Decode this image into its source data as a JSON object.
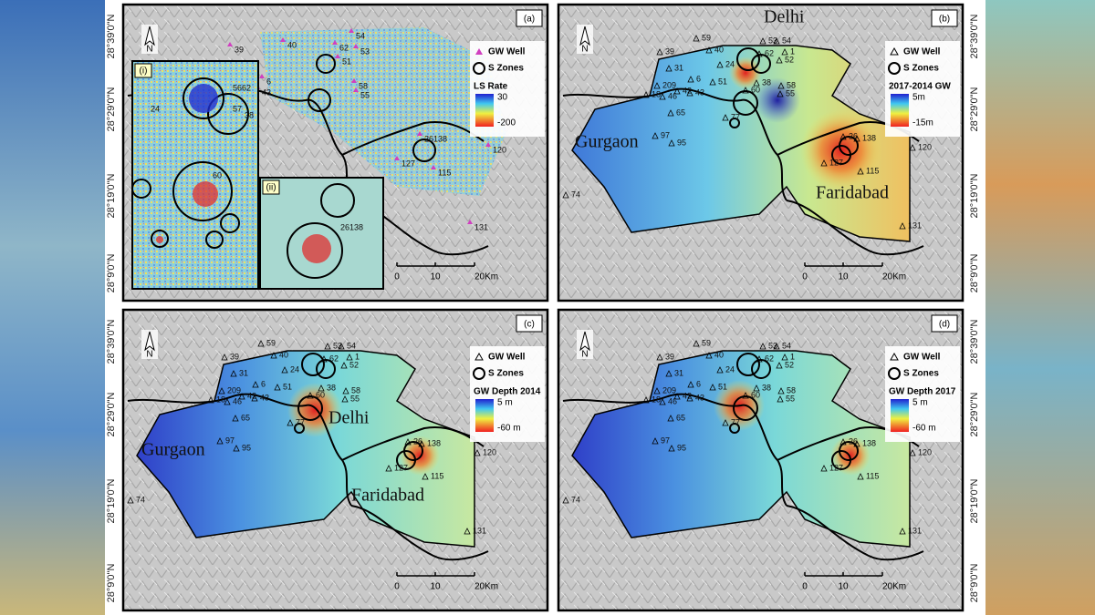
{
  "north": "N",
  "latitude_labels": [
    "28°39'0\"N",
    "28°29'0\"N",
    "28°19'0\"N",
    "28°9'0\"N"
  ],
  "panels": [
    {
      "label": "(a)",
      "legend": {
        "well": "GW Well",
        "zones": "S Zones",
        "ramp_title": "LS Rate",
        "ramp_max": "30",
        "ramp_min": "-200"
      },
      "scale": [
        "0",
        "10",
        "20Km"
      ],
      "places": [],
      "insets": [
        "(i)",
        "(ii)"
      ],
      "wells": [
        "39",
        "40",
        "54",
        "53",
        "62",
        "51",
        "58",
        "55",
        "6",
        "43",
        "120",
        "115",
        "131",
        "127",
        "26138"
      ],
      "inset_wells": [
        "5662",
        "57",
        "38",
        "24",
        "60",
        "26138"
      ]
    },
    {
      "label": "(b)",
      "legend": {
        "well": "GW Well",
        "zones": "S Zones",
        "ramp_title": "2017-2014 GW",
        "ramp_max": "5m",
        "ramp_min": "-15m"
      },
      "scale": [
        "0",
        "10",
        "20Km"
      ],
      "places": [
        "Delhi",
        "Gurgaon",
        "Faridabad"
      ],
      "wells": [
        "59",
        "40",
        "53",
        "54",
        "1",
        "62",
        "52",
        "39",
        "31",
        "24",
        "6",
        "51",
        "209",
        "42",
        "43",
        "18",
        "46",
        "60",
        "38",
        "58",
        "55",
        "65",
        "77",
        "97",
        "95",
        "26",
        "138",
        "127",
        "115",
        "120",
        "131",
        "74"
      ]
    },
    {
      "label": "(c)",
      "legend": {
        "well": "GW Well",
        "zones": "S Zones",
        "ramp_title": "GW Depth 2014",
        "ramp_max": "5 m",
        "ramp_min": "-60 m"
      },
      "scale": [
        "0",
        "10",
        "20Km"
      ],
      "places": [
        "Delhi",
        "Gurgaon",
        "Faridabad"
      ],
      "wells": [
        "59",
        "40",
        "53",
        "54",
        "1",
        "62",
        "52",
        "39",
        "31",
        "24",
        "6",
        "51",
        "209",
        "42",
        "43",
        "18",
        "46",
        "60",
        "38",
        "58",
        "55",
        "65",
        "77",
        "97",
        "95",
        "26",
        "138",
        "127",
        "115",
        "120",
        "131",
        "74"
      ]
    },
    {
      "label": "(d)",
      "legend": {
        "well": "GW Well",
        "zones": "S Zones",
        "ramp_title": "GW Depth 2017",
        "ramp_max": "5 m",
        "ramp_min": "-60 m"
      },
      "scale": [
        "0",
        "10",
        "20Km"
      ],
      "places": [],
      "wells": [
        "59",
        "40",
        "53",
        "54",
        "1",
        "62",
        "52",
        "39",
        "31",
        "24",
        "6",
        "51",
        "209",
        "42",
        "43",
        "18",
        "46",
        "60",
        "38",
        "58",
        "55",
        "65",
        "77",
        "97",
        "95",
        "26",
        "138",
        "127",
        "115",
        "120",
        "131",
        "74"
      ]
    }
  ]
}
